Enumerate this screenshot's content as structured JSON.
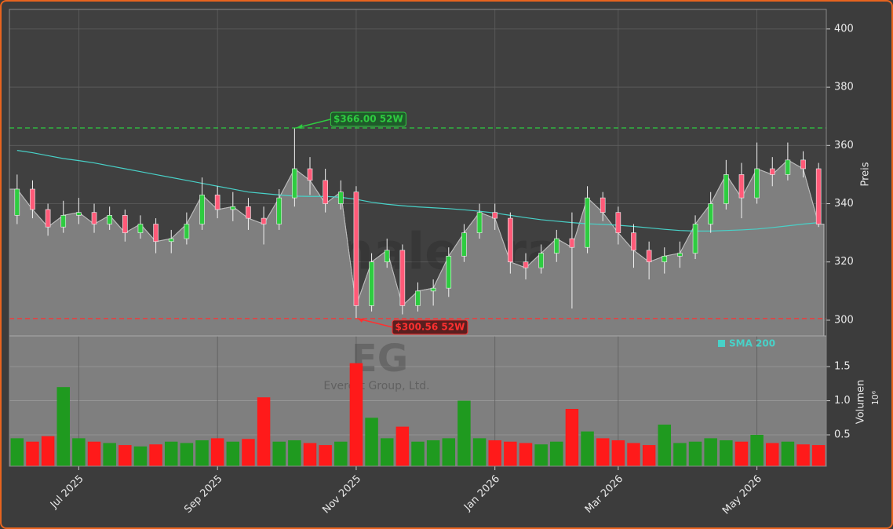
{
  "chart_data": [
    {
      "type": "candlestick",
      "ylabel": "Preis",
      "watermark": "forexsignale.trade",
      "ticker": "EG",
      "company": "Everest Group, Ltd.",
      "categories": [
        null,
        null,
        null,
        null,
        "Jul 2025",
        null,
        null,
        null,
        null,
        null,
        null,
        null,
        null,
        "Sep 2025",
        null,
        null,
        null,
        null,
        null,
        null,
        null,
        null,
        "Nov 2025",
        null,
        null,
        null,
        null,
        null,
        null,
        null,
        null,
        "Jan 2026",
        null,
        null,
        null,
        null,
        null,
        null,
        null,
        "Mar 2026",
        null,
        null,
        null,
        null,
        null,
        null,
        null,
        null,
        "May 2026",
        null,
        null,
        null,
        null
      ],
      "open": [
        336,
        345,
        338,
        332,
        336,
        337,
        333,
        336,
        330,
        333,
        327,
        328,
        333,
        343,
        338,
        339,
        335,
        333,
        342,
        352,
        348,
        340,
        344,
        305,
        320,
        324,
        305,
        310,
        311,
        322,
        330,
        337,
        335,
        320,
        318,
        323,
        328,
        325,
        342,
        337,
        330,
        324,
        320,
        322,
        323,
        333,
        340,
        350,
        342,
        352,
        350,
        355,
        352
      ],
      "high": [
        350,
        348,
        340,
        341,
        342,
        340,
        339,
        338,
        336,
        335,
        331,
        337,
        349,
        346,
        344,
        342,
        339,
        345,
        366,
        356,
        352,
        348,
        346,
        323,
        328,
        326,
        313,
        314,
        325,
        333,
        340,
        340,
        337,
        323,
        326,
        331,
        337,
        346,
        344,
        339,
        333,
        327,
        325,
        327,
        336,
        344,
        355,
        354,
        361,
        356,
        361,
        358,
        354
      ],
      "low": [
        333,
        335,
        329,
        330,
        333,
        330,
        331,
        327,
        328,
        323,
        323,
        326,
        331,
        335,
        334,
        331,
        326,
        331,
        339,
        343,
        337,
        338,
        300.56,
        303,
        318,
        302,
        303,
        305,
        308,
        320,
        328,
        331,
        316,
        314,
        316,
        320,
        304,
        323,
        334,
        326,
        318,
        314,
        316,
        318,
        321,
        330,
        338,
        335,
        340,
        346,
        348,
        349,
        332
      ],
      "close": [
        345,
        338,
        332,
        336,
        337,
        333,
        336,
        330,
        333,
        327,
        328,
        333,
        343,
        338,
        339,
        335,
        333,
        342,
        352,
        348,
        340,
        344,
        305,
        320,
        324,
        305,
        310,
        311,
        322,
        330,
        337,
        335,
        320,
        318,
        323,
        328,
        325,
        342,
        337,
        330,
        324,
        320,
        322,
        323,
        333,
        340,
        350,
        342,
        352,
        350,
        355,
        352,
        333
      ],
      "up_color": "#2ecc40",
      "down_color": "#ff5a78",
      "area_color": "#7f7f7f",
      "sma": {
        "name": "SMA 200",
        "color": "#48d1c8",
        "values": [
          358.3,
          357.5,
          356.5,
          355.5,
          354.8,
          354.0,
          353.0,
          352.0,
          351.0,
          350.0,
          349.0,
          348.0,
          347.0,
          346.0,
          345.0,
          344.0,
          343.5,
          343.0,
          342.6,
          342.5,
          342.5,
          342.2,
          341.5,
          340.5,
          339.8,
          339.3,
          338.9,
          338.6,
          338.3,
          337.9,
          337.4,
          336.8,
          336.0,
          335.2,
          334.5,
          334.0,
          333.5,
          333.1,
          332.9,
          332.6,
          332.2,
          331.7,
          331.2,
          330.8,
          330.6,
          330.6,
          330.8,
          331.0,
          331.3,
          331.8,
          332.4,
          333.0,
          333.5
        ]
      },
      "annotations": [
        {
          "value": 366,
          "label": "$366.00 52W",
          "color": "#2ecc40"
        },
        {
          "value": 300.56,
          "label": "$300.56 52W",
          "color": "#ff3030"
        }
      ],
      "ylim": [
        294.6,
        406.7
      ],
      "yticks": [
        300,
        320,
        340,
        360,
        380,
        400
      ],
      "grid": true
    },
    {
      "type": "bar",
      "ylabel": "Volumen",
      "multiplier": "10⁶",
      "values": [
        0.45,
        0.4,
        0.48,
        1.2,
        0.45,
        0.4,
        0.38,
        0.35,
        0.33,
        0.36,
        0.4,
        0.38,
        0.42,
        0.45,
        0.4,
        0.44,
        1.05,
        0.4,
        0.42,
        0.38,
        0.35,
        0.4,
        1.55,
        0.75,
        0.45,
        0.62,
        0.4,
        0.42,
        0.45,
        1.0,
        0.45,
        0.42,
        0.4,
        0.38,
        0.36,
        0.4,
        0.88,
        0.55,
        0.45,
        0.42,
        0.38,
        0.35,
        0.65,
        0.38,
        0.4,
        0.45,
        0.42,
        0.4,
        0.5,
        0.38,
        0.4,
        0.36,
        0.35
      ],
      "up_color": "#1f9a1f",
      "down_color": "#ff1a1a",
      "ylim": [
        0.04,
        1.95
      ],
      "yticks": [
        0.5,
        {
          "value": 1.0,
          "label": "1.0"
        },
        1.5
      ],
      "grid": true
    }
  ]
}
